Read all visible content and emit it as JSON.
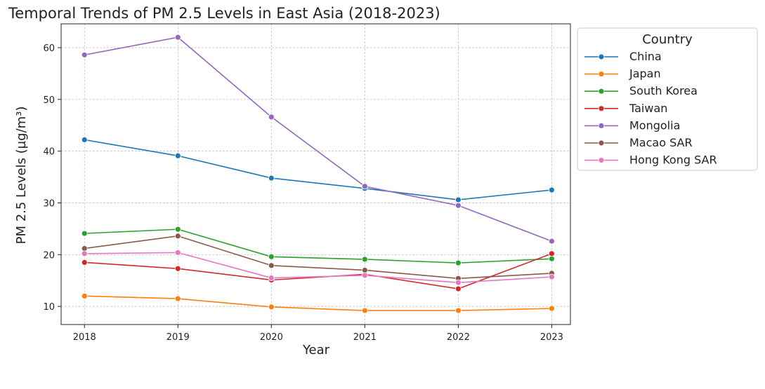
{
  "chart_data": {
    "type": "line",
    "title": "Temporal Trends of PM 2.5 Levels in East Asia (2018-2023)",
    "xlabel": "Year",
    "ylabel": "PM 2.5 Levels (µg/m³)",
    "x": [
      2018,
      2019,
      2020,
      2021,
      2022,
      2023
    ],
    "xticks": [
      "2018",
      "2019",
      "2020",
      "2021",
      "2022",
      "2023"
    ],
    "yticks": [
      "10",
      "20",
      "30",
      "40",
      "50",
      "60"
    ],
    "xlim": [
      2017.75,
      2023.2
    ],
    "ylim": [
      6.5,
      64.6
    ],
    "grid": true,
    "legend": {
      "title": "Country",
      "placement": "outside-right"
    },
    "series": [
      {
        "name": "China",
        "color": "#1f77b4",
        "values": [
          42.2,
          39.1,
          34.8,
          32.8,
          30.6,
          32.5
        ]
      },
      {
        "name": "Japan",
        "color": "#ff7f0e",
        "values": [
          12.0,
          11.5,
          9.9,
          9.2,
          9.2,
          9.6
        ]
      },
      {
        "name": "South Korea",
        "color": "#2ca02c",
        "values": [
          24.1,
          24.9,
          19.6,
          19.1,
          18.4,
          19.2
        ]
      },
      {
        "name": "Taiwan",
        "color": "#d62728",
        "values": [
          18.5,
          17.3,
          15.1,
          16.2,
          13.4,
          20.2
        ]
      },
      {
        "name": "Mongolia",
        "color": "#9467bd",
        "values": [
          58.6,
          62.0,
          46.6,
          33.2,
          29.5,
          22.6
        ]
      },
      {
        "name": "Macao SAR",
        "color": "#8c564b",
        "values": [
          21.2,
          23.6,
          17.9,
          17.0,
          15.4,
          16.4
        ]
      },
      {
        "name": "Hong Kong SAR",
        "color": "#e377c2",
        "values": [
          20.2,
          20.4,
          15.5,
          16.0,
          14.6,
          15.7
        ]
      }
    ]
  }
}
